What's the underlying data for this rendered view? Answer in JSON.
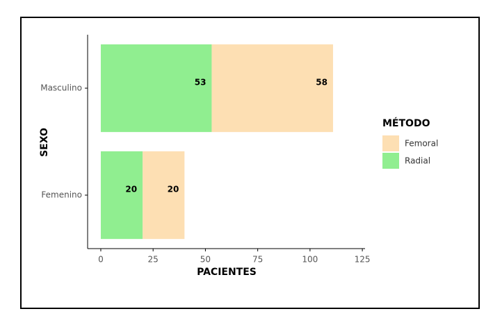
{
  "chart_data": {
    "type": "stacked-barh",
    "categories": [
      "Masculino",
      "Femenino"
    ],
    "series": [
      {
        "name": "Femoral",
        "color": "#fddfb3",
        "values": [
          58,
          20
        ]
      },
      {
        "name": "Radial",
        "color": "#90ee90",
        "values": [
          53,
          20
        ]
      }
    ],
    "xlim": [
      -6.3,
      126.3
    ],
    "xticks": [
      0,
      25,
      50,
      75,
      100,
      125
    ],
    "x_label": "PACIENTES",
    "y_label": "SEXO",
    "legend_title": "MÉTODO",
    "legend": "right"
  }
}
